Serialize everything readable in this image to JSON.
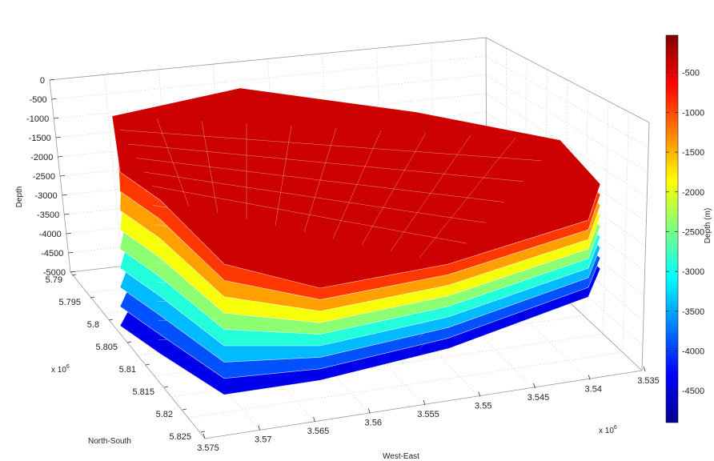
{
  "chart_data": {
    "type": "surface",
    "title": "",
    "z_axis": {
      "label": "Depth",
      "ticks": [
        "0",
        "-500",
        "-1000",
        "-1500",
        "-2000",
        "-2500",
        "-3000",
        "-3500",
        "-4000",
        "-4500",
        "-5000"
      ],
      "range": [
        -5000,
        0
      ]
    },
    "y_axis": {
      "label": "North-South",
      "multiplier": "x 10",
      "multiplier_exp": "6",
      "ticks": [
        "5.79",
        "5.795",
        "5.8",
        "5.805",
        "5.81",
        "5.815",
        "5.82",
        "5.825"
      ],
      "range": [
        5.79,
        5.825
      ]
    },
    "x_axis": {
      "label": "West-East",
      "multiplier": "x 10",
      "multiplier_exp": "6",
      "ticks": [
        "3.575",
        "3.57",
        "3.565",
        "3.56",
        "3.555",
        "3.55",
        "3.545",
        "3.54",
        "3.535"
      ],
      "range": [
        3.535,
        3.575
      ]
    },
    "colorbar": {
      "label": "Depth (m)",
      "ticks": [
        "-500",
        "-1000",
        "-1500",
        "-2000",
        "-2500",
        "-3000",
        "-3500",
        "-4000",
        "-4500"
      ],
      "range": [
        -4900,
        -30
      ],
      "colormap": "jet"
    },
    "surfaces": [
      {
        "mean_depth": -400
      },
      {
        "mean_depth": -900
      },
      {
        "mean_depth": -1400
      },
      {
        "mean_depth": -1900
      },
      {
        "mean_depth": -2400
      },
      {
        "mean_depth": -2900
      },
      {
        "mean_depth": -3400
      },
      {
        "mean_depth": -3900
      },
      {
        "mean_depth": -4400
      }
    ],
    "grid": true
  }
}
